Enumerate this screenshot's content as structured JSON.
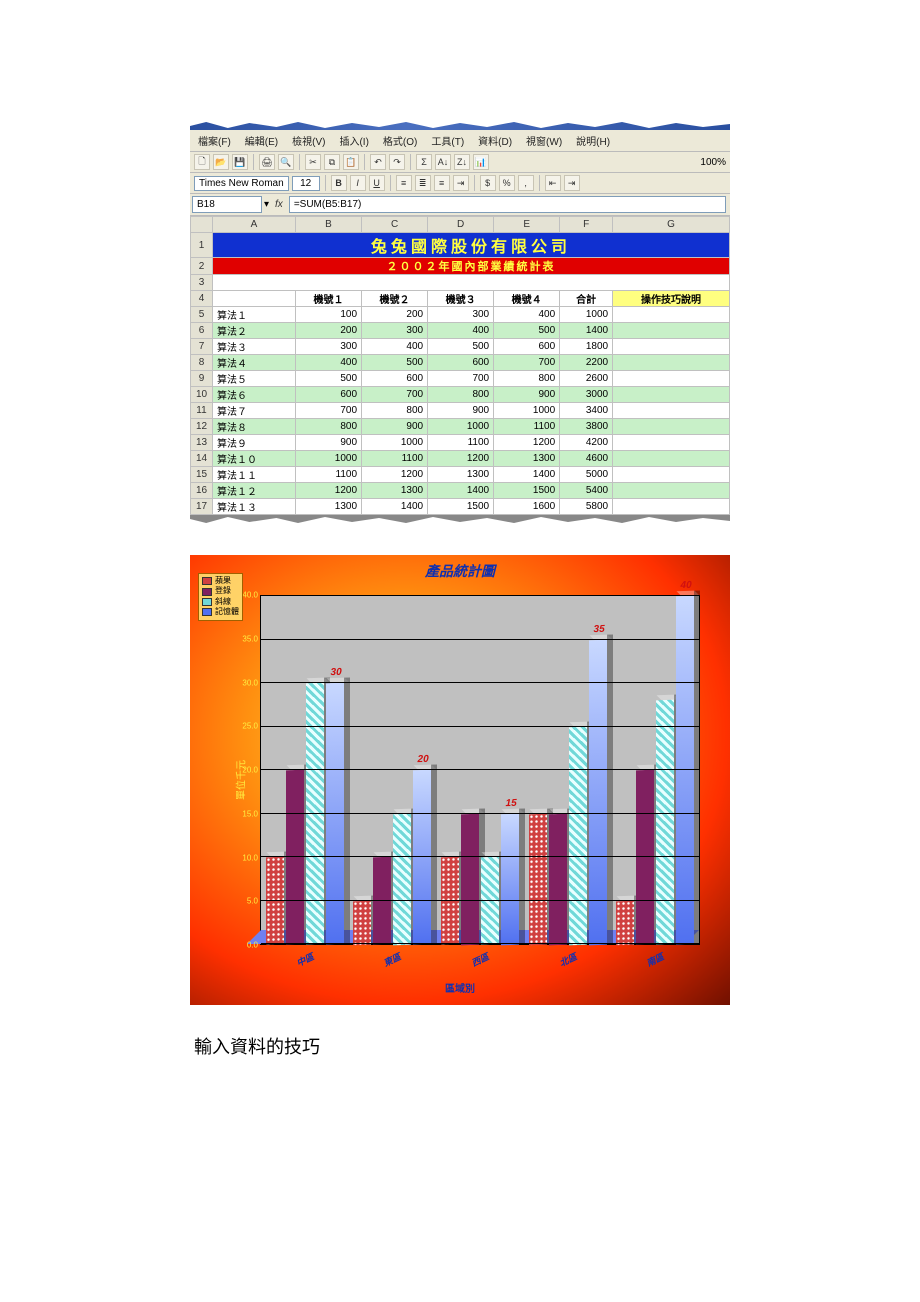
{
  "excel": {
    "menu": [
      "檔案(F)",
      "編輯(E)",
      "檢視(V)",
      "插入(I)",
      "格式(O)",
      "工具(T)",
      "資料(D)",
      "視窗(W)",
      "說明(H)"
    ],
    "zoom": "100%",
    "font_name": "Times New Roman",
    "font_size": "12",
    "name_box": "B18",
    "formula": "=SUM(B5:B17)",
    "col_letters": [
      "",
      "A",
      "B",
      "C",
      "D",
      "E",
      "F",
      "G"
    ],
    "title": "兔兔國際股份有限公司",
    "subtitle": "２００２年國內部業績統計表",
    "headers": [
      "機號１",
      "機號２",
      "機號３",
      "機號４",
      "合計",
      "操作技巧說明"
    ],
    "rows": [
      {
        "n": "5",
        "label": "算法１",
        "v": [
          100,
          200,
          300,
          400,
          1000
        ]
      },
      {
        "n": "6",
        "label": "算法２",
        "v": [
          200,
          300,
          400,
          500,
          1400
        ],
        "alt": true
      },
      {
        "n": "7",
        "label": "算法３",
        "v": [
          300,
          400,
          500,
          600,
          1800
        ]
      },
      {
        "n": "8",
        "label": "算法４",
        "v": [
          400,
          500,
          600,
          700,
          2200
        ],
        "alt": true
      },
      {
        "n": "9",
        "label": "算法５",
        "v": [
          500,
          600,
          700,
          800,
          2600
        ]
      },
      {
        "n": "10",
        "label": "算法６",
        "v": [
          600,
          700,
          800,
          900,
          3000
        ],
        "alt": true
      },
      {
        "n": "11",
        "label": "算法７",
        "v": [
          700,
          800,
          900,
          1000,
          3400
        ]
      },
      {
        "n": "12",
        "label": "算法８",
        "v": [
          800,
          900,
          1000,
          1100,
          3800
        ],
        "alt": true
      },
      {
        "n": "13",
        "label": "算法９",
        "v": [
          900,
          1000,
          1100,
          1200,
          4200
        ]
      },
      {
        "n": "14",
        "label": "算法１０",
        "v": [
          1000,
          1100,
          1200,
          1300,
          4600
        ],
        "alt": true
      },
      {
        "n": "15",
        "label": "算法１１",
        "v": [
          1100,
          1200,
          1300,
          1400,
          5000
        ]
      },
      {
        "n": "16",
        "label": "算法１２",
        "v": [
          1200,
          1300,
          1400,
          1500,
          5400
        ],
        "alt": true
      },
      {
        "n": "17",
        "label": "算法１３",
        "v": [
          1300,
          1400,
          1500,
          1600,
          5800
        ]
      }
    ],
    "total_row_label": "合計",
    "colors": {
      "title_bg": "#1030d0",
      "title_fg": "#ffff40",
      "subtitle_bg": "#e00000",
      "subtitle_fg": "#ffff40",
      "alt_bg": "#c8f0c8",
      "tip_bg": "#ffff80",
      "grid": "#c0c0c0",
      "header_bg": "#e4e2d4"
    }
  },
  "chart": {
    "title": "產品統計圖",
    "y_label": "單位千元",
    "x_label": "區域別",
    "y_max": 40,
    "y_min": 0,
    "y_step": 5,
    "y_ticks": [
      "0.0",
      "5.0",
      "10.0",
      "15.0",
      "20.0",
      "25.0",
      "30.0",
      "35.0",
      "40.0"
    ],
    "legend": [
      "蘋果",
      "登錄",
      "斜線",
      "記憶體"
    ],
    "categories": [
      "中區",
      "東區",
      "西區",
      "北區",
      "南區"
    ],
    "series": [
      {
        "name": "s1",
        "color": "#d04040",
        "pattern": "dots",
        "values": [
          10,
          5,
          10,
          15,
          5
        ]
      },
      {
        "name": "s2",
        "color": "#802060",
        "pattern": "solid",
        "values": [
          20,
          10,
          15,
          15,
          20
        ]
      },
      {
        "name": "s3",
        "color": "#70d8d8",
        "pattern": "hatch",
        "values": [
          30,
          15,
          10,
          25,
          28
        ]
      },
      {
        "name": "s4",
        "color": "#5070f0",
        "pattern": "grad",
        "values": [
          30,
          20,
          15,
          35,
          40
        ]
      }
    ],
    "value_labels_color": "#d01010",
    "plot_bg": "#c0c0c0",
    "floor_color": "#7080f0",
    "frame_gradient": [
      "#ffe040",
      "#ff9010",
      "#ff3000",
      "#701000"
    ]
  },
  "caption": "輸入資料的技巧"
}
